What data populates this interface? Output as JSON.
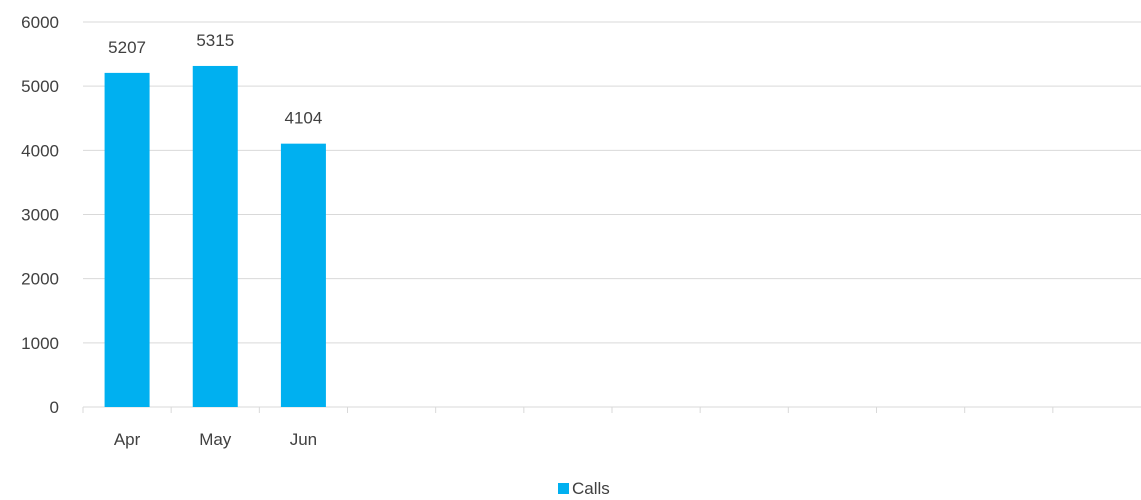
{
  "chart_data": {
    "type": "bar",
    "title": "",
    "xlabel": "",
    "ylabel": "",
    "categories": [
      "Apr",
      "May",
      "Jun",
      "",
      "",
      "",
      "",
      "",
      "",
      "",
      "",
      ""
    ],
    "series": [
      {
        "name": "Calls",
        "values": [
          5207,
          5315,
          4104,
          null,
          null,
          null,
          null,
          null,
          null,
          null,
          null,
          null
        ],
        "color": "#00b0f0"
      }
    ],
    "ylim": [
      0,
      6000
    ],
    "y_ticks": [
      0,
      1000,
      2000,
      3000,
      4000,
      5000,
      6000
    ],
    "grid": true,
    "data_labels": true,
    "legend": {
      "position": "bottom",
      "entries": [
        "Calls"
      ]
    },
    "colors": {
      "bar": "#00b0f0",
      "gridline": "#d9d9d9",
      "axis": "#d9d9d9",
      "text": "#404040"
    }
  }
}
